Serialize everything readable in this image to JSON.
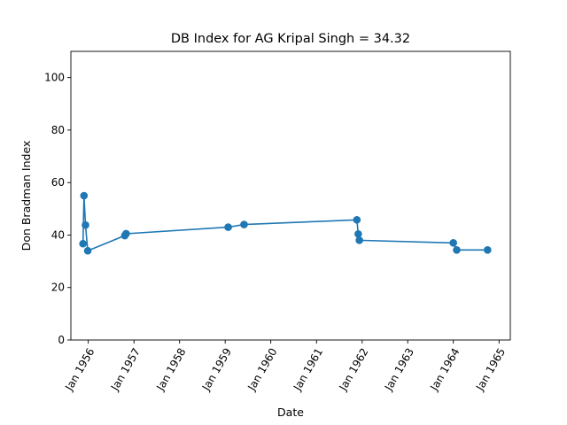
{
  "chart_data": {
    "type": "line",
    "title": "DB Index for AG Kripal Singh = 34.32",
    "xlabel": "Date",
    "ylabel": "Don Bradman Index",
    "ylim": [
      0,
      110
    ],
    "yticks": [
      0,
      20,
      40,
      60,
      80,
      100
    ],
    "xticks": [
      {
        "date": "1956-01-01",
        "label": "Jan 1956"
      },
      {
        "date": "1957-01-01",
        "label": "Jan 1957"
      },
      {
        "date": "1958-01-01",
        "label": "Jan 1958"
      },
      {
        "date": "1959-01-01",
        "label": "Jan 1959"
      },
      {
        "date": "1960-01-01",
        "label": "Jan 1960"
      },
      {
        "date": "1961-01-01",
        "label": "Jan 1961"
      },
      {
        "date": "1962-01-01",
        "label": "Jan 1962"
      },
      {
        "date": "1963-01-01",
        "label": "Jan 1963"
      },
      {
        "date": "1964-01-01",
        "label": "Jan 1964"
      },
      {
        "date": "1965-01-01",
        "label": "Jan 1965"
      }
    ],
    "xlim": [
      "1955-08-15",
      "1965-04-01"
    ],
    "grid": false,
    "series": [
      {
        "color": "#1f77b4",
        "points": [
          {
            "x": "1955-11-20",
            "y": 36.7
          },
          {
            "x": "1955-11-28",
            "y": 55.0
          },
          {
            "x": "1955-12-10",
            "y": 43.8
          },
          {
            "x": "1955-12-28",
            "y": 34.0
          },
          {
            "x": "1956-10-20",
            "y": 39.8
          },
          {
            "x": "1956-10-30",
            "y": 40.5
          },
          {
            "x": "1959-01-25",
            "y": 43.0
          },
          {
            "x": "1959-06-01",
            "y": 44.0
          },
          {
            "x": "1961-11-20",
            "y": 45.8
          },
          {
            "x": "1961-12-01",
            "y": 40.4
          },
          {
            "x": "1961-12-10",
            "y": 38.0
          },
          {
            "x": "1964-01-01",
            "y": 37.0
          },
          {
            "x": "1964-01-28",
            "y": 34.3
          },
          {
            "x": "1964-10-01",
            "y": 34.3
          }
        ]
      }
    ]
  }
}
